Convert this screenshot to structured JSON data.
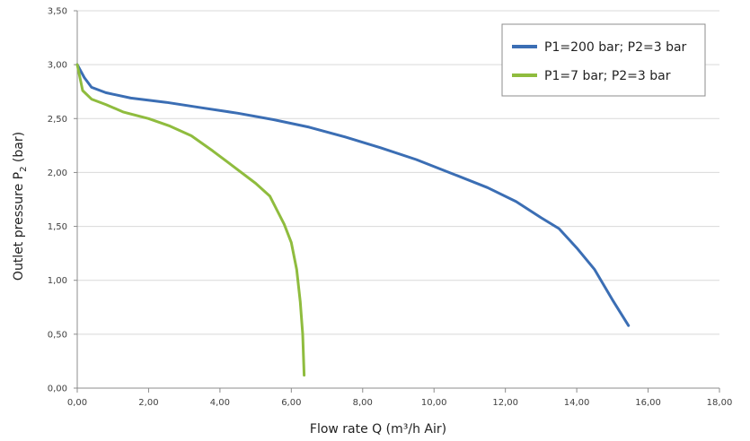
{
  "chart_data": {
    "type": "line",
    "xlabel": "Flow rate Q (m³/h Air)",
    "ylabel_main": "Outlet pressure P",
    "ylabel_sub": "2",
    "ylabel_tail": " (bar)",
    "xlim": [
      0,
      18
    ],
    "ylim": [
      0,
      3.5
    ],
    "xticks": [
      0,
      2,
      4,
      6,
      8,
      10,
      12,
      14,
      16,
      18
    ],
    "xtick_labels": [
      "0,00",
      "2,00",
      "4,00",
      "6,00",
      "8,00",
      "10,00",
      "12,00",
      "14,00",
      "16,00",
      "18,00"
    ],
    "yticks": [
      0,
      0.5,
      1,
      1.5,
      2,
      2.5,
      3,
      3.5
    ],
    "ytick_labels": [
      "0,00",
      "0,50",
      "1,00",
      "1,50",
      "2,00",
      "2,50",
      "3,00",
      "3,50"
    ],
    "grid": "horizontal",
    "legend_position": "top-right",
    "series": [
      {
        "name": "P1=200 bar; P2=3 bar",
        "color": "#3b6eb4",
        "points": [
          [
            0,
            3.0
          ],
          [
            0.2,
            2.88
          ],
          [
            0.4,
            2.79
          ],
          [
            0.8,
            2.74
          ],
          [
            1.5,
            2.69
          ],
          [
            2.5,
            2.65
          ],
          [
            3.5,
            2.6
          ],
          [
            4.5,
            2.55
          ],
          [
            5.5,
            2.49
          ],
          [
            6.5,
            2.42
          ],
          [
            7.5,
            2.33
          ],
          [
            8.5,
            2.23
          ],
          [
            9.5,
            2.12
          ],
          [
            10.5,
            1.99
          ],
          [
            11.5,
            1.86
          ],
          [
            12.3,
            1.73
          ],
          [
            13.0,
            1.58
          ],
          [
            13.5,
            1.48
          ],
          [
            14.0,
            1.3
          ],
          [
            14.5,
            1.1
          ],
          [
            15.0,
            0.82
          ],
          [
            15.45,
            0.58
          ]
        ]
      },
      {
        "name": "P1=7 bar; P2=3 bar",
        "color": "#8fbc3e",
        "points": [
          [
            0,
            3.0
          ],
          [
            0.15,
            2.76
          ],
          [
            0.4,
            2.68
          ],
          [
            0.8,
            2.63
          ],
          [
            1.3,
            2.56
          ],
          [
            2.0,
            2.5
          ],
          [
            2.6,
            2.43
          ],
          [
            3.2,
            2.34
          ],
          [
            3.8,
            2.2
          ],
          [
            4.4,
            2.05
          ],
          [
            5.0,
            1.9
          ],
          [
            5.4,
            1.78
          ],
          [
            5.6,
            1.65
          ],
          [
            5.8,
            1.52
          ],
          [
            6.0,
            1.35
          ],
          [
            6.15,
            1.1
          ],
          [
            6.25,
            0.8
          ],
          [
            6.32,
            0.5
          ],
          [
            6.36,
            0.12
          ]
        ]
      }
    ]
  }
}
